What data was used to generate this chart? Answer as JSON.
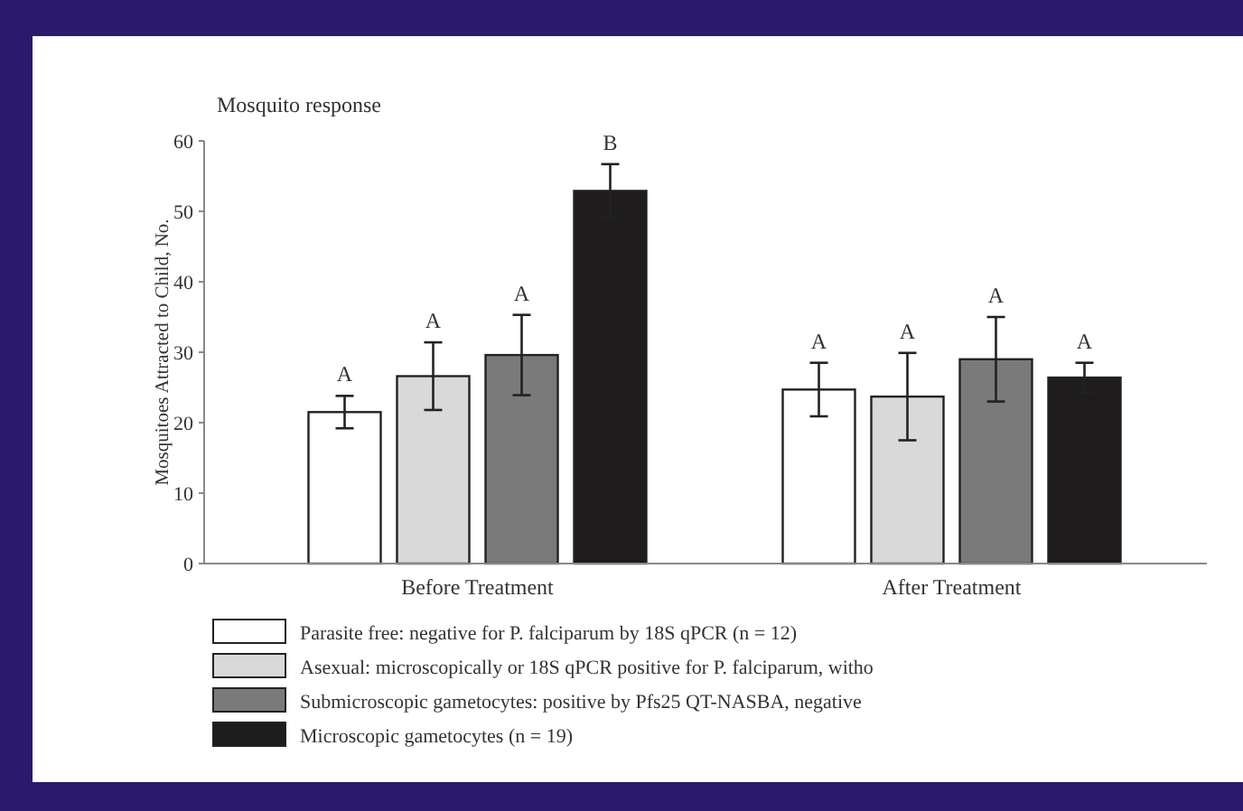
{
  "chart_data": {
    "type": "bar",
    "title": "Mosquito response",
    "ylabel": "Mosquitoes Attracted to Child, No.",
    "categories": [
      "Before Treatment",
      "After Treatment"
    ],
    "series": [
      {
        "name": "Parasite free: negative for P. falciparum by 18S qPCR (n = 12)",
        "color": "#ffffff",
        "values": [
          21.5,
          24.7
        ],
        "errors": [
          2.3,
          3.8
        ]
      },
      {
        "name": "Asexual: microscopically or 18S qPCR positive for P. falciparum, witho",
        "color": "#d9d9d9",
        "values": [
          26.6,
          23.7
        ],
        "errors": [
          4.8,
          6.2
        ]
      },
      {
        "name": "Submicroscopic gametocytes: positive by Pfs25 QT-NASBA, negative",
        "color": "#7a7a7a",
        "values": [
          29.6,
          29
        ],
        "errors": [
          5.7,
          6
        ]
      },
      {
        "name": "Microscopic gametocytes (n = 19)",
        "color": "#1e1c1d",
        "values": [
          52.9,
          26.4
        ],
        "errors": [
          3.8,
          2.1
        ]
      }
    ],
    "ylim": [
      0,
      60
    ],
    "yticks": [
      0,
      10,
      20,
      30,
      40,
      50,
      60
    ],
    "grid": false,
    "legend": "bottom",
    "annotations": [
      "A",
      "A",
      "A",
      "B",
      "A",
      "A",
      "A",
      "A"
    ]
  }
}
